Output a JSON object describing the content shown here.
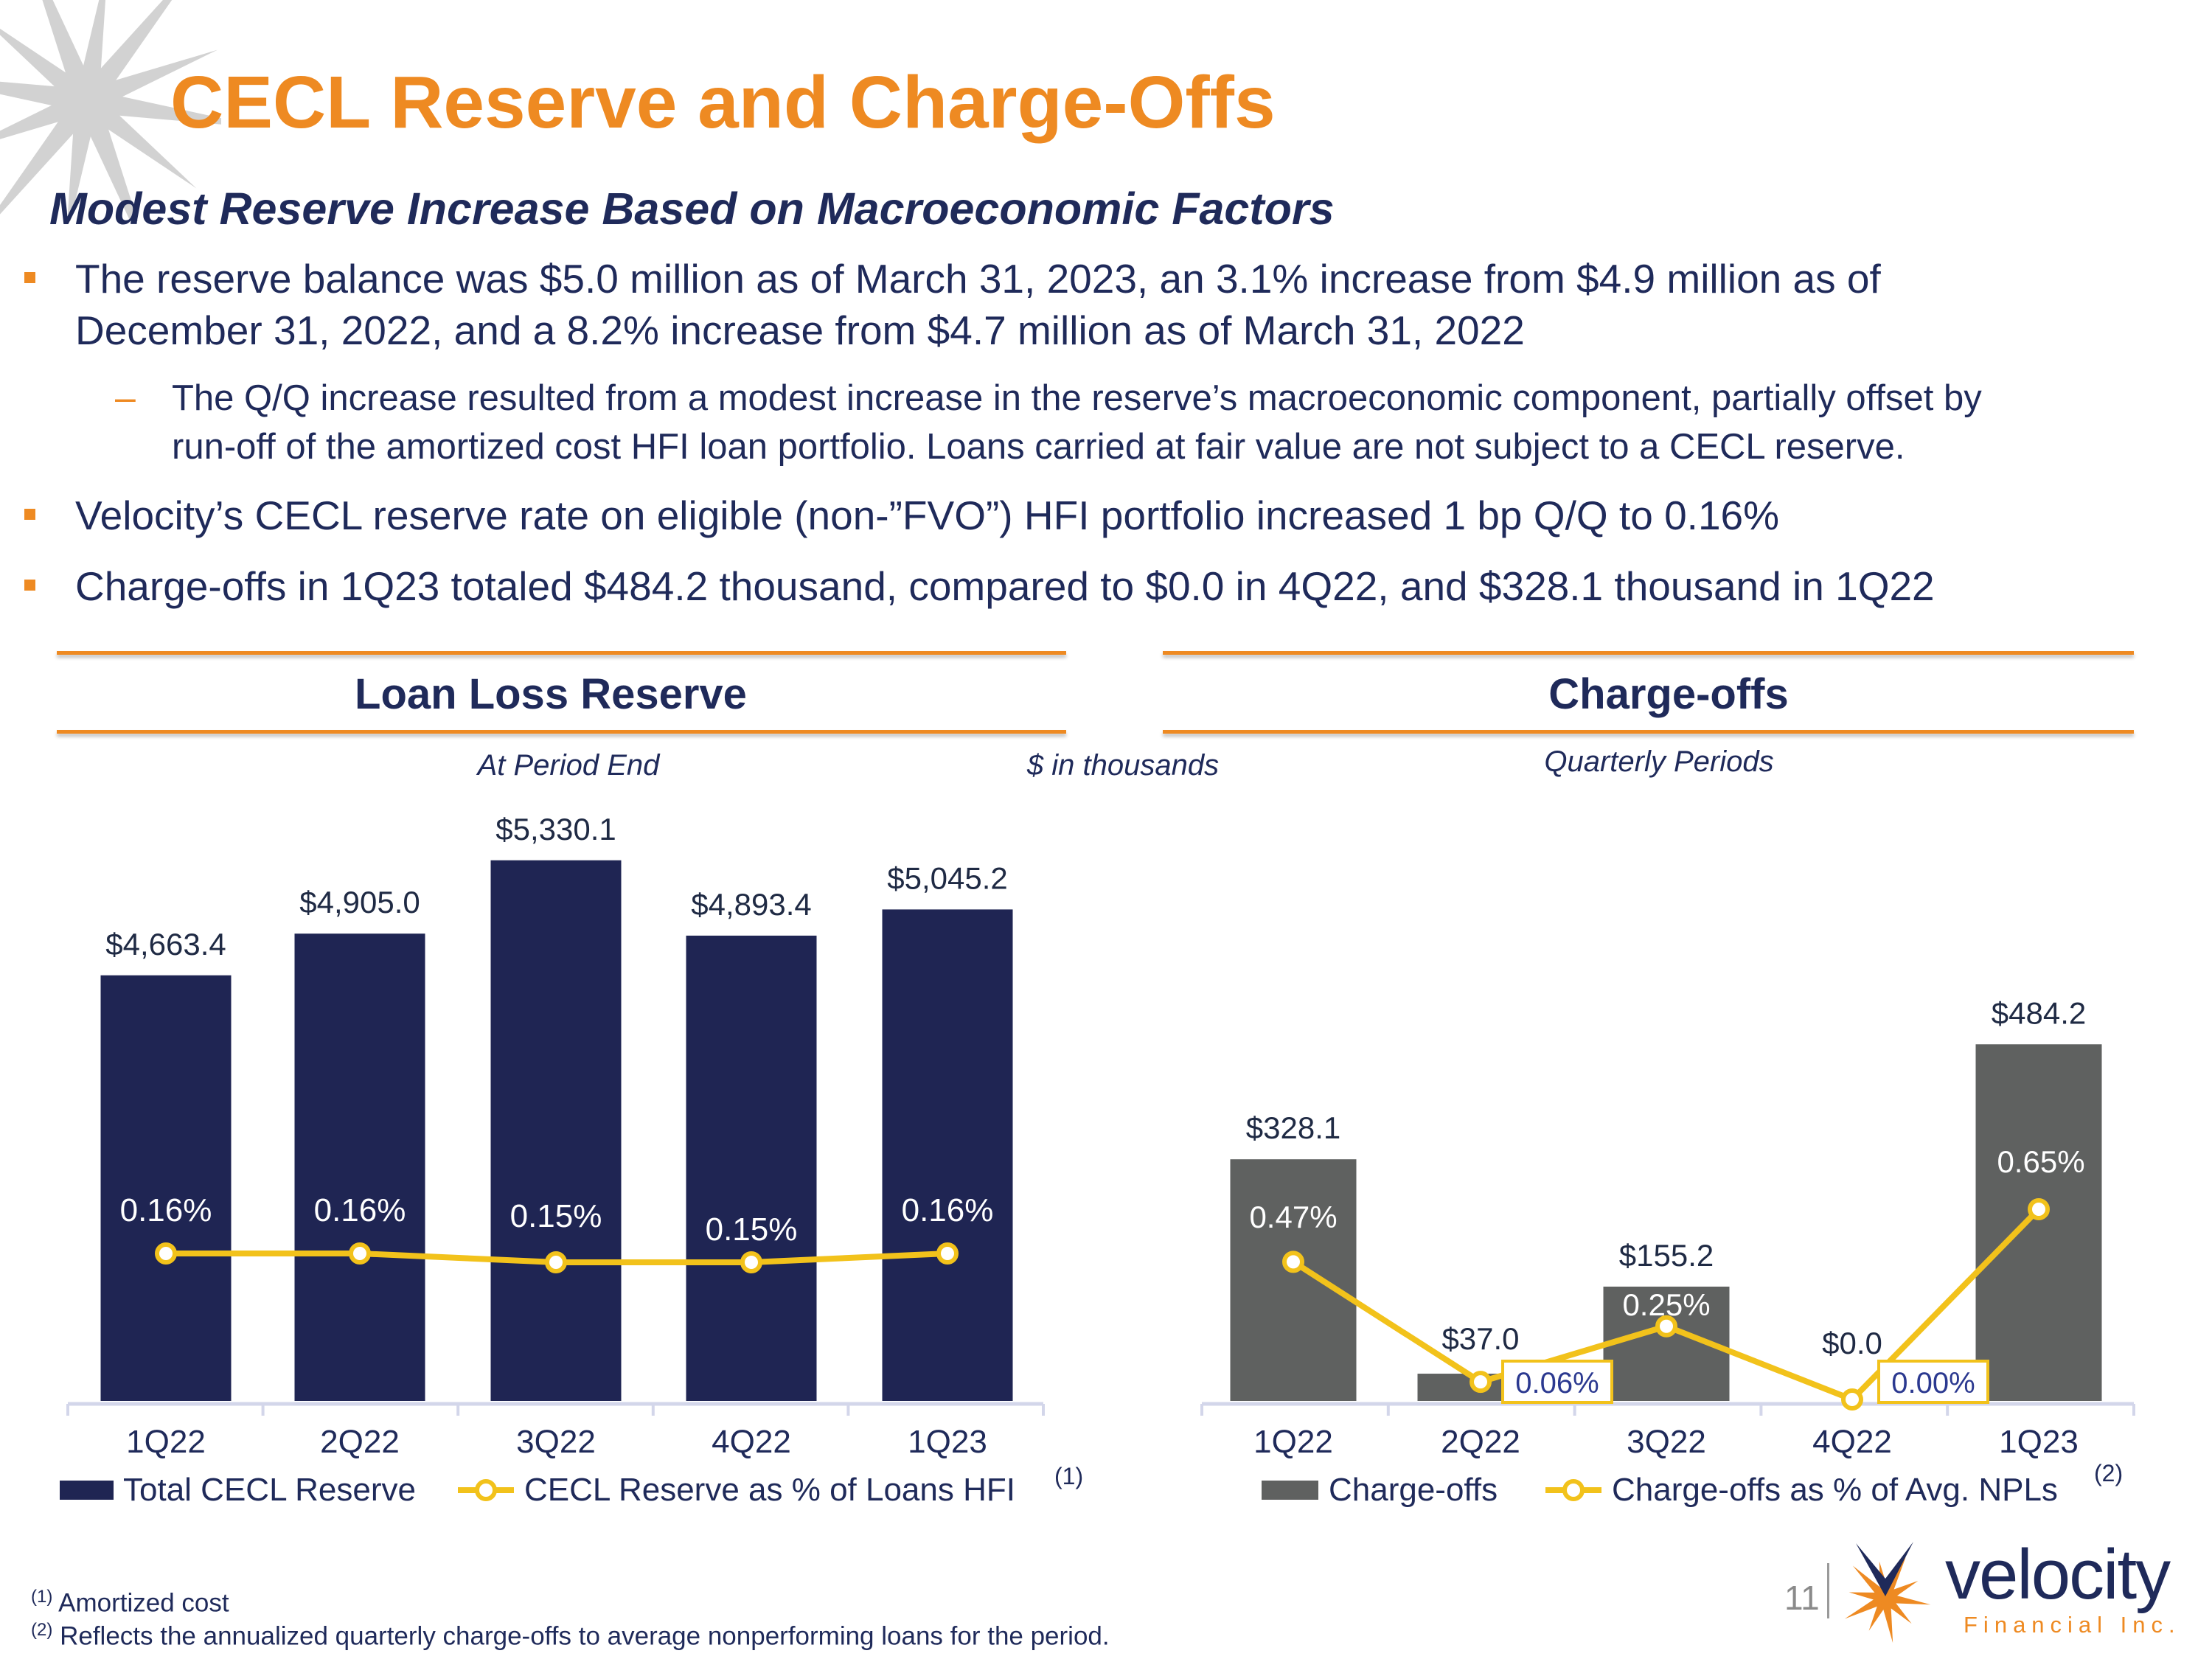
{
  "header": {
    "title": "CECL Reserve and Charge-Offs",
    "subtitle": "Modest Reserve Increase Based on Macroeconomic Factors"
  },
  "bullets": [
    {
      "lines": [
        "The reserve balance was $5.0 million as of March 31, 2023, an 3.1% increase from $4.9 million as of",
        "December 31, 2022, and a 8.2% increase from $4.7 million as of March 31, 2022"
      ],
      "sub": [
        "The Q/Q increase resulted from a modest increase in the reserve’s macroeconomic component, partially offset by",
        "run-off of the amortized cost HFI loan portfolio. Loans carried at fair value are not subject to a CECL reserve."
      ]
    },
    {
      "lines": [
        "Velocity’s CECL reserve rate on eligible (non-”FVO”) HFI portfolio increased 1 bp Q/Q to 0.16%"
      ]
    },
    {
      "lines": [
        "Charge-offs in 1Q23 totaled $484.2 thousand, compared to $0.0 in 4Q22, and $328.1 thousand in 1Q22"
      ]
    }
  ],
  "panels": {
    "left_title": "Loan Loss Reserve",
    "right_title": "Charge-offs",
    "left_note": "At Period End",
    "center_note": "$ in thousands",
    "right_note": "Quarterly Periods"
  },
  "colors": {
    "accent": "#EE8A22",
    "navy": "#1F2A5A",
    "bar_navy": "#1F2553",
    "bar_gray": "#5F6160",
    "line_yellow": "#F2C21B",
    "axis": "#D3D6EA"
  },
  "chart_data": [
    {
      "type": "bar+line",
      "categories": [
        "1Q22",
        "2Q22",
        "3Q22",
        "4Q22",
        "1Q23"
      ],
      "series": [
        {
          "name": "Total CECL Reserve",
          "type": "bar",
          "values": [
            4663.4,
            4905.0,
            5330.1,
            4893.4,
            5045.2
          ],
          "labels": [
            "$4,663.4",
            "$4,905.0",
            "$5,330.1",
            "$4,893.4",
            "$5,045.2"
          ]
        },
        {
          "name": "CECL Reserve as % of Loans HFI",
          "type": "line",
          "axis": "secondary",
          "values": [
            0.16,
            0.16,
            0.15,
            0.15,
            0.16
          ],
          "labels": [
            "0.16%",
            "0.16%",
            "0.15%",
            "0.15%",
            "0.16%"
          ]
        }
      ],
      "legend_footnote": "(1)",
      "ylim": [
        2200,
        6000
      ],
      "legend": "bottom",
      "grid": false
    },
    {
      "type": "bar+line",
      "categories": [
        "1Q22",
        "2Q22",
        "3Q22",
        "4Q22",
        "1Q23"
      ],
      "series": [
        {
          "name": "Charge-offs",
          "type": "bar",
          "values": [
            328.1,
            37.0,
            155.2,
            0.0,
            484.2
          ],
          "labels": [
            "$328.1",
            "$37.0",
            "$155.2",
            "$0.0",
            "$484.2"
          ]
        },
        {
          "name": "Charge-offs as % of Avg. NPLs",
          "type": "line",
          "axis": "secondary",
          "values": [
            0.47,
            0.06,
            0.25,
            0.0,
            0.65
          ],
          "labels": [
            "0.47%",
            "0.06%",
            "0.25%",
            "0.00%",
            "0.65%"
          ]
        }
      ],
      "legend_footnote": "(2)",
      "ylim": [
        0,
        900
      ],
      "legend": "bottom",
      "grid": false
    }
  ],
  "footnotes": [
    {
      "mark": "(1)",
      "text": "Amortized cost"
    },
    {
      "mark": "(2)",
      "text": "Reflects the annualized quarterly charge-offs to average nonperforming loans for the period."
    }
  ],
  "footer": {
    "page_number": "11",
    "logo_word": "velocity",
    "logo_sub": "Financial Inc."
  }
}
